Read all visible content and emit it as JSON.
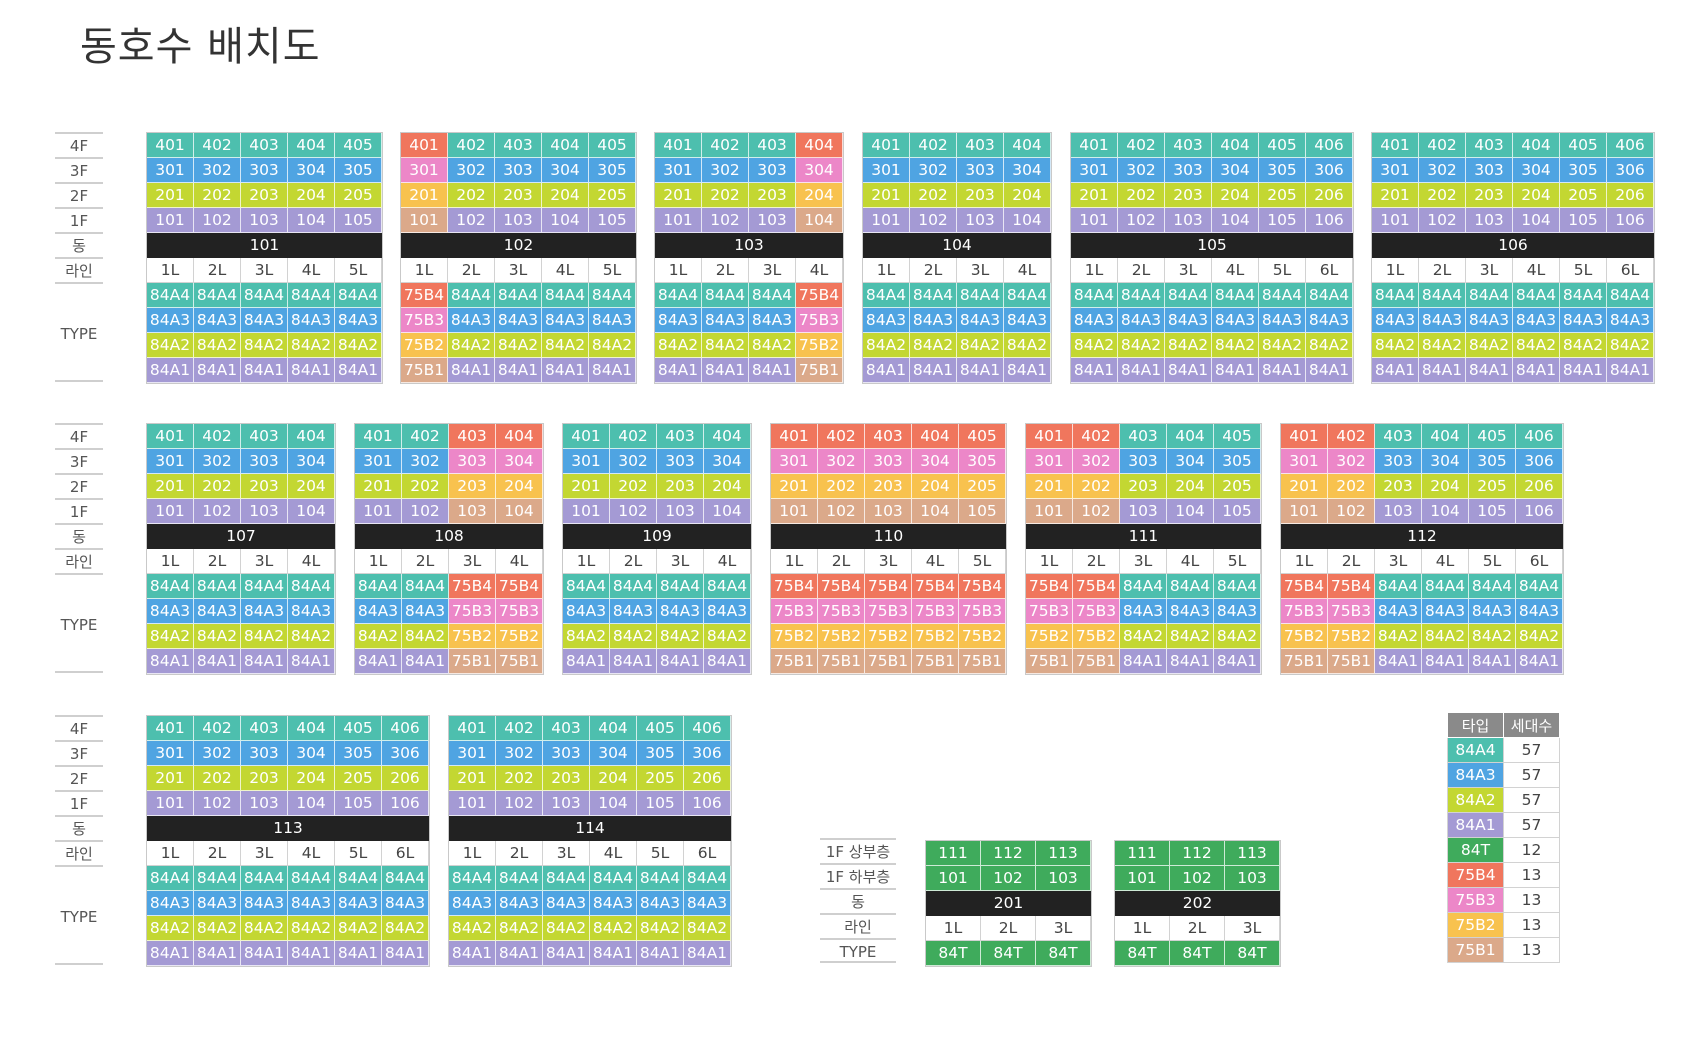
{
  "page_title": "동호수 배치도",
  "row_labels": {
    "floors": [
      "4F",
      "3F",
      "2F",
      "1F"
    ],
    "dong": "동",
    "line": "라인",
    "type": "TYPE"
  },
  "buildings": [
    {
      "dong": "101",
      "lines": [
        "1L",
        "2L",
        "3L",
        "4L",
        "5L"
      ],
      "floors": [
        [
          "401",
          "402",
          "403",
          "404",
          "405"
        ],
        [
          "301",
          "302",
          "303",
          "304",
          "305"
        ],
        [
          "201",
          "202",
          "203",
          "204",
          "205"
        ],
        [
          "101",
          "102",
          "103",
          "104",
          "105"
        ]
      ],
      "types": [
        [
          "84A4",
          "84A4",
          "84A4",
          "84A4",
          "84A4"
        ],
        [
          "84A3",
          "84A3",
          "84A3",
          "84A3",
          "84A3"
        ],
        [
          "84A2",
          "84A2",
          "84A2",
          "84A2",
          "84A2"
        ],
        [
          "84A1",
          "84A1",
          "84A1",
          "84A1",
          "84A1"
        ]
      ]
    },
    {
      "dong": "102",
      "lines": [
        "1L",
        "2L",
        "3L",
        "4L",
        "5L"
      ],
      "floors": [
        [
          "401",
          "402",
          "403",
          "404",
          "405"
        ],
        [
          "301",
          "302",
          "303",
          "304",
          "305"
        ],
        [
          "201",
          "202",
          "203",
          "204",
          "205"
        ],
        [
          "101",
          "102",
          "103",
          "104",
          "105"
        ]
      ],
      "types": [
        [
          "75B4",
          "84A4",
          "84A4",
          "84A4",
          "84A4"
        ],
        [
          "75B3",
          "84A3",
          "84A3",
          "84A3",
          "84A3"
        ],
        [
          "75B2",
          "84A2",
          "84A2",
          "84A2",
          "84A2"
        ],
        [
          "75B1",
          "84A1",
          "84A1",
          "84A1",
          "84A1"
        ]
      ]
    },
    {
      "dong": "103",
      "lines": [
        "1L",
        "2L",
        "3L",
        "4L"
      ],
      "floors": [
        [
          "401",
          "402",
          "403",
          "404"
        ],
        [
          "301",
          "302",
          "303",
          "304"
        ],
        [
          "201",
          "202",
          "203",
          "204"
        ],
        [
          "101",
          "102",
          "103",
          "104"
        ]
      ],
      "types": [
        [
          "84A4",
          "84A4",
          "84A4",
          "75B4"
        ],
        [
          "84A3",
          "84A3",
          "84A3",
          "75B3"
        ],
        [
          "84A2",
          "84A2",
          "84A2",
          "75B2"
        ],
        [
          "84A1",
          "84A1",
          "84A1",
          "75B1"
        ]
      ]
    },
    {
      "dong": "104",
      "lines": [
        "1L",
        "2L",
        "3L",
        "4L"
      ],
      "floors": [
        [
          "401",
          "402",
          "403",
          "404"
        ],
        [
          "301",
          "302",
          "303",
          "304"
        ],
        [
          "201",
          "202",
          "203",
          "204"
        ],
        [
          "101",
          "102",
          "103",
          "104"
        ]
      ],
      "types": [
        [
          "84A4",
          "84A4",
          "84A4",
          "84A4"
        ],
        [
          "84A3",
          "84A3",
          "84A3",
          "84A3"
        ],
        [
          "84A2",
          "84A2",
          "84A2",
          "84A2"
        ],
        [
          "84A1",
          "84A1",
          "84A1",
          "84A1"
        ]
      ]
    },
    {
      "dong": "105",
      "lines": [
        "1L",
        "2L",
        "3L",
        "4L",
        "5L",
        "6L"
      ],
      "floors": [
        [
          "401",
          "402",
          "403",
          "404",
          "405",
          "406"
        ],
        [
          "301",
          "302",
          "303",
          "304",
          "305",
          "306"
        ],
        [
          "201",
          "202",
          "203",
          "204",
          "205",
          "206"
        ],
        [
          "101",
          "102",
          "103",
          "104",
          "105",
          "106"
        ]
      ],
      "types": [
        [
          "84A4",
          "84A4",
          "84A4",
          "84A4",
          "84A4",
          "84A4"
        ],
        [
          "84A3",
          "84A3",
          "84A3",
          "84A3",
          "84A3",
          "84A3"
        ],
        [
          "84A2",
          "84A2",
          "84A2",
          "84A2",
          "84A2",
          "84A2"
        ],
        [
          "84A1",
          "84A1",
          "84A1",
          "84A1",
          "84A1",
          "84A1"
        ]
      ]
    },
    {
      "dong": "106",
      "lines": [
        "1L",
        "2L",
        "3L",
        "4L",
        "5L",
        "6L"
      ],
      "floors": [
        [
          "401",
          "402",
          "403",
          "404",
          "405",
          "406"
        ],
        [
          "301",
          "302",
          "303",
          "304",
          "305",
          "306"
        ],
        [
          "201",
          "202",
          "203",
          "204",
          "205",
          "206"
        ],
        [
          "101",
          "102",
          "103",
          "104",
          "105",
          "106"
        ]
      ],
      "types": [
        [
          "84A4",
          "84A4",
          "84A4",
          "84A4",
          "84A4",
          "84A4"
        ],
        [
          "84A3",
          "84A3",
          "84A3",
          "84A3",
          "84A3",
          "84A3"
        ],
        [
          "84A2",
          "84A2",
          "84A2",
          "84A2",
          "84A2",
          "84A2"
        ],
        [
          "84A1",
          "84A1",
          "84A1",
          "84A1",
          "84A1",
          "84A1"
        ]
      ]
    },
    {
      "dong": "107",
      "lines": [
        "1L",
        "2L",
        "3L",
        "4L"
      ],
      "floors": [
        [
          "401",
          "402",
          "403",
          "404"
        ],
        [
          "301",
          "302",
          "303",
          "304"
        ],
        [
          "201",
          "202",
          "203",
          "204"
        ],
        [
          "101",
          "102",
          "103",
          "104"
        ]
      ],
      "types": [
        [
          "84A4",
          "84A4",
          "84A4",
          "84A4"
        ],
        [
          "84A3",
          "84A3",
          "84A3",
          "84A3"
        ],
        [
          "84A2",
          "84A2",
          "84A2",
          "84A2"
        ],
        [
          "84A1",
          "84A1",
          "84A1",
          "84A1"
        ]
      ]
    },
    {
      "dong": "108",
      "lines": [
        "1L",
        "2L",
        "3L",
        "4L"
      ],
      "floors": [
        [
          "401",
          "402",
          "403",
          "404"
        ],
        [
          "301",
          "302",
          "303",
          "304"
        ],
        [
          "201",
          "202",
          "203",
          "204"
        ],
        [
          "101",
          "102",
          "103",
          "104"
        ]
      ],
      "types": [
        [
          "84A4",
          "84A4",
          "75B4",
          "75B4"
        ],
        [
          "84A3",
          "84A3",
          "75B3",
          "75B3"
        ],
        [
          "84A2",
          "84A2",
          "75B2",
          "75B2"
        ],
        [
          "84A1",
          "84A1",
          "75B1",
          "75B1"
        ]
      ]
    },
    {
      "dong": "109",
      "lines": [
        "1L",
        "2L",
        "3L",
        "4L"
      ],
      "floors": [
        [
          "401",
          "402",
          "403",
          "404"
        ],
        [
          "301",
          "302",
          "303",
          "304"
        ],
        [
          "201",
          "202",
          "203",
          "204"
        ],
        [
          "101",
          "102",
          "103",
          "104"
        ]
      ],
      "types": [
        [
          "84A4",
          "84A4",
          "84A4",
          "84A4"
        ],
        [
          "84A3",
          "84A3",
          "84A3",
          "84A3"
        ],
        [
          "84A2",
          "84A2",
          "84A2",
          "84A2"
        ],
        [
          "84A1",
          "84A1",
          "84A1",
          "84A1"
        ]
      ]
    },
    {
      "dong": "110",
      "lines": [
        "1L",
        "2L",
        "3L",
        "4L",
        "5L"
      ],
      "floors": [
        [
          "401",
          "402",
          "403",
          "404",
          "405"
        ],
        [
          "301",
          "302",
          "303",
          "304",
          "305"
        ],
        [
          "201",
          "202",
          "203",
          "204",
          "205"
        ],
        [
          "101",
          "102",
          "103",
          "104",
          "105"
        ]
      ],
      "types": [
        [
          "75B4",
          "75B4",
          "75B4",
          "75B4",
          "75B4"
        ],
        [
          "75B3",
          "75B3",
          "75B3",
          "75B3",
          "75B3"
        ],
        [
          "75B2",
          "75B2",
          "75B2",
          "75B2",
          "75B2"
        ],
        [
          "75B1",
          "75B1",
          "75B1",
          "75B1",
          "75B1"
        ]
      ]
    },
    {
      "dong": "111",
      "lines": [
        "1L",
        "2L",
        "3L",
        "4L",
        "5L"
      ],
      "floors": [
        [
          "401",
          "402",
          "403",
          "404",
          "405"
        ],
        [
          "301",
          "302",
          "303",
          "304",
          "305"
        ],
        [
          "201",
          "202",
          "203",
          "204",
          "205"
        ],
        [
          "101",
          "102",
          "103",
          "104",
          "105"
        ]
      ],
      "types": [
        [
          "75B4",
          "75B4",
          "84A4",
          "84A4",
          "84A4"
        ],
        [
          "75B3",
          "75B3",
          "84A3",
          "84A3",
          "84A3"
        ],
        [
          "75B2",
          "75B2",
          "84A2",
          "84A2",
          "84A2"
        ],
        [
          "75B1",
          "75B1",
          "84A1",
          "84A1",
          "84A1"
        ]
      ]
    },
    {
      "dong": "112",
      "lines": [
        "1L",
        "2L",
        "3L",
        "4L",
        "5L",
        "6L"
      ],
      "floors": [
        [
          "401",
          "402",
          "403",
          "404",
          "405",
          "406"
        ],
        [
          "301",
          "302",
          "303",
          "304",
          "305",
          "306"
        ],
        [
          "201",
          "202",
          "203",
          "204",
          "205",
          "206"
        ],
        [
          "101",
          "102",
          "103",
          "104",
          "105",
          "106"
        ]
      ],
      "types": [
        [
          "75B4",
          "75B4",
          "84A4",
          "84A4",
          "84A4",
          "84A4"
        ],
        [
          "75B3",
          "75B3",
          "84A3",
          "84A3",
          "84A3",
          "84A3"
        ],
        [
          "75B2",
          "75B2",
          "84A2",
          "84A2",
          "84A2",
          "84A2"
        ],
        [
          "75B1",
          "75B1",
          "84A1",
          "84A1",
          "84A1",
          "84A1"
        ]
      ]
    },
    {
      "dong": "113",
      "lines": [
        "1L",
        "2L",
        "3L",
        "4L",
        "5L",
        "6L"
      ],
      "floors": [
        [
          "401",
          "402",
          "403",
          "404",
          "405",
          "406"
        ],
        [
          "301",
          "302",
          "303",
          "304",
          "305",
          "306"
        ],
        [
          "201",
          "202",
          "203",
          "204",
          "205",
          "206"
        ],
        [
          "101",
          "102",
          "103",
          "104",
          "105",
          "106"
        ]
      ],
      "types": [
        [
          "84A4",
          "84A4",
          "84A4",
          "84A4",
          "84A4",
          "84A4"
        ],
        [
          "84A3",
          "84A3",
          "84A3",
          "84A3",
          "84A3",
          "84A3"
        ],
        [
          "84A2",
          "84A2",
          "84A2",
          "84A2",
          "84A2",
          "84A2"
        ],
        [
          "84A1",
          "84A1",
          "84A1",
          "84A1",
          "84A1",
          "84A1"
        ]
      ]
    },
    {
      "dong": "114",
      "lines": [
        "1L",
        "2L",
        "3L",
        "4L",
        "5L",
        "6L"
      ],
      "floors": [
        [
          "401",
          "402",
          "403",
          "404",
          "405",
          "406"
        ],
        [
          "301",
          "302",
          "303",
          "304",
          "305",
          "306"
        ],
        [
          "201",
          "202",
          "203",
          "204",
          "205",
          "206"
        ],
        [
          "101",
          "102",
          "103",
          "104",
          "105",
          "106"
        ]
      ],
      "types": [
        [
          "84A4",
          "84A4",
          "84A4",
          "84A4",
          "84A4",
          "84A4"
        ],
        [
          "84A3",
          "84A3",
          "84A3",
          "84A3",
          "84A3",
          "84A3"
        ],
        [
          "84A2",
          "84A2",
          "84A2",
          "84A2",
          "84A2",
          "84A2"
        ],
        [
          "84A1",
          "84A1",
          "84A1",
          "84A1",
          "84A1",
          "84A1"
        ]
      ]
    }
  ],
  "split_labels": {
    "upper": "1F 상부층",
    "lower": "1F 하부층",
    "dong": "동",
    "line": "라인",
    "type": "TYPE"
  },
  "split_buildings": [
    {
      "dong": "201",
      "upper": [
        "111",
        "112",
        "113"
      ],
      "lower": [
        "101",
        "102",
        "103"
      ],
      "lines": [
        "1L",
        "2L",
        "3L"
      ],
      "types": [
        "84T",
        "84T",
        "84T"
      ]
    },
    {
      "dong": "202",
      "upper": [
        "111",
        "112",
        "113"
      ],
      "lower": [
        "101",
        "102",
        "103"
      ],
      "lines": [
        "1L",
        "2L",
        "3L"
      ],
      "types": [
        "84T",
        "84T",
        "84T"
      ]
    }
  ],
  "legend": {
    "header_type": "타입",
    "header_count": "세대수",
    "rows": [
      {
        "type": "84A4",
        "count": "57"
      },
      {
        "type": "84A3",
        "count": "57"
      },
      {
        "type": "84A2",
        "count": "57"
      },
      {
        "type": "84A1",
        "count": "57"
      },
      {
        "type": "84T",
        "count": "12"
      },
      {
        "type": "75B4",
        "count": "13"
      },
      {
        "type": "75B3",
        "count": "13"
      },
      {
        "type": "75B2",
        "count": "13"
      },
      {
        "type": "75B1",
        "count": "13"
      }
    ]
  },
  "type_colors": {
    "84A4": "#4dbfae",
    "84A3": "#4fa4e2",
    "84A2": "#c3d732",
    "84A1": "#a49ad4",
    "84T": "#3fab5c",
    "75B4": "#f0765d",
    "75B3": "#ec87c8",
    "75B2": "#f8c24e",
    "75B1": "#dba98a"
  }
}
